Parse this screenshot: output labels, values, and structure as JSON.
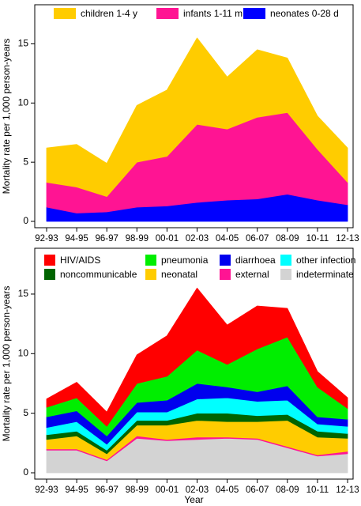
{
  "chart_data": [
    {
      "type": "area",
      "stacked": true,
      "title": "",
      "xlabel": "",
      "ylabel": "Mortality rate per 1,000 person-years",
      "ylim": [
        0,
        17
      ],
      "yticks": [
        0,
        5,
        10,
        15
      ],
      "categories": [
        "92-93",
        "94-95",
        "96-97",
        "98-99",
        "00-01",
        "02-03",
        "04-05",
        "06-07",
        "08-09",
        "10-11",
        "12-13"
      ],
      "grid": false,
      "legend_position": "top",
      "series": [
        {
          "name": "children 1-4 y",
          "color": "#ffcc00",
          "values": [
            2.9,
            3.6,
            2.8,
            4.8,
            5.6,
            7.3,
            4.4,
            5.7,
            4.6,
            2.8,
            2.9
          ]
        },
        {
          "name": "infants 1-11 m",
          "color": "#ff1493",
          "values": [
            2.1,
            2.2,
            1.3,
            3.8,
            4.2,
            6.6,
            6.0,
            6.9,
            6.9,
            4.3,
            1.9
          ]
        },
        {
          "name": "neonates 0-28 d",
          "color": "#0000ff",
          "values": [
            1.2,
            0.7,
            0.8,
            1.2,
            1.3,
            1.6,
            1.8,
            1.9,
            2.3,
            1.8,
            1.4
          ]
        }
      ]
    },
    {
      "type": "area",
      "stacked": true,
      "title": "",
      "xlabel": "Year",
      "ylabel": "Mortality rate per 1,000 person-years",
      "ylim": [
        0,
        17
      ],
      "yticks": [
        0,
        5,
        10,
        15
      ],
      "categories": [
        "92-93",
        "94-95",
        "96-97",
        "98-99",
        "00-01",
        "02-03",
        "04-05",
        "06-07",
        "08-09",
        "10-11",
        "12-13"
      ],
      "grid": false,
      "legend_position": "top",
      "series": [
        {
          "name": "HIV/AIDS",
          "color": "#ff0000",
          "values": [
            0.7,
            1.3,
            1.2,
            2.4,
            3.4,
            5.2,
            3.3,
            3.6,
            2.4,
            1.3,
            0.9
          ]
        },
        {
          "name": "pneumonia",
          "color": "#00ee00",
          "values": [
            0.8,
            1.1,
            0.8,
            1.6,
            2.0,
            2.8,
            1.9,
            3.6,
            4.1,
            2.5,
            0.9
          ]
        },
        {
          "name": "diarrhoea",
          "color": "#0000ee",
          "values": [
            0.9,
            0.9,
            0.7,
            0.8,
            1.0,
            1.3,
            0.9,
            0.8,
            1.2,
            0.6,
            0.6
          ]
        },
        {
          "name": "other infection",
          "color": "#00ffff",
          "values": [
            0.6,
            0.8,
            0.5,
            0.7,
            0.7,
            1.2,
            1.3,
            1.2,
            1.2,
            0.6,
            0.6
          ]
        },
        {
          "name": "noncommunicable",
          "color": "#006400",
          "values": [
            0.4,
            0.4,
            0.3,
            0.4,
            0.4,
            0.6,
            0.7,
            0.5,
            0.5,
            0.5,
            0.4
          ]
        },
        {
          "name": "neonatal",
          "color": "#ffcc00",
          "values": [
            0.8,
            1.1,
            0.5,
            0.9,
            1.2,
            1.4,
            1.3,
            1.4,
            2.2,
            1.5,
            1.1
          ]
        },
        {
          "name": "external",
          "color": "#ff1493",
          "values": [
            0.1,
            0.1,
            0.1,
            0.2,
            0.1,
            0.2,
            0.1,
            0.1,
            0.1,
            0.1,
            0.2
          ]
        },
        {
          "name": "indeterminate",
          "color": "#d3d3d3",
          "values": [
            1.9,
            1.9,
            1.0,
            2.9,
            2.7,
            2.8,
            2.9,
            2.8,
            2.1,
            1.4,
            1.6
          ]
        }
      ]
    }
  ]
}
